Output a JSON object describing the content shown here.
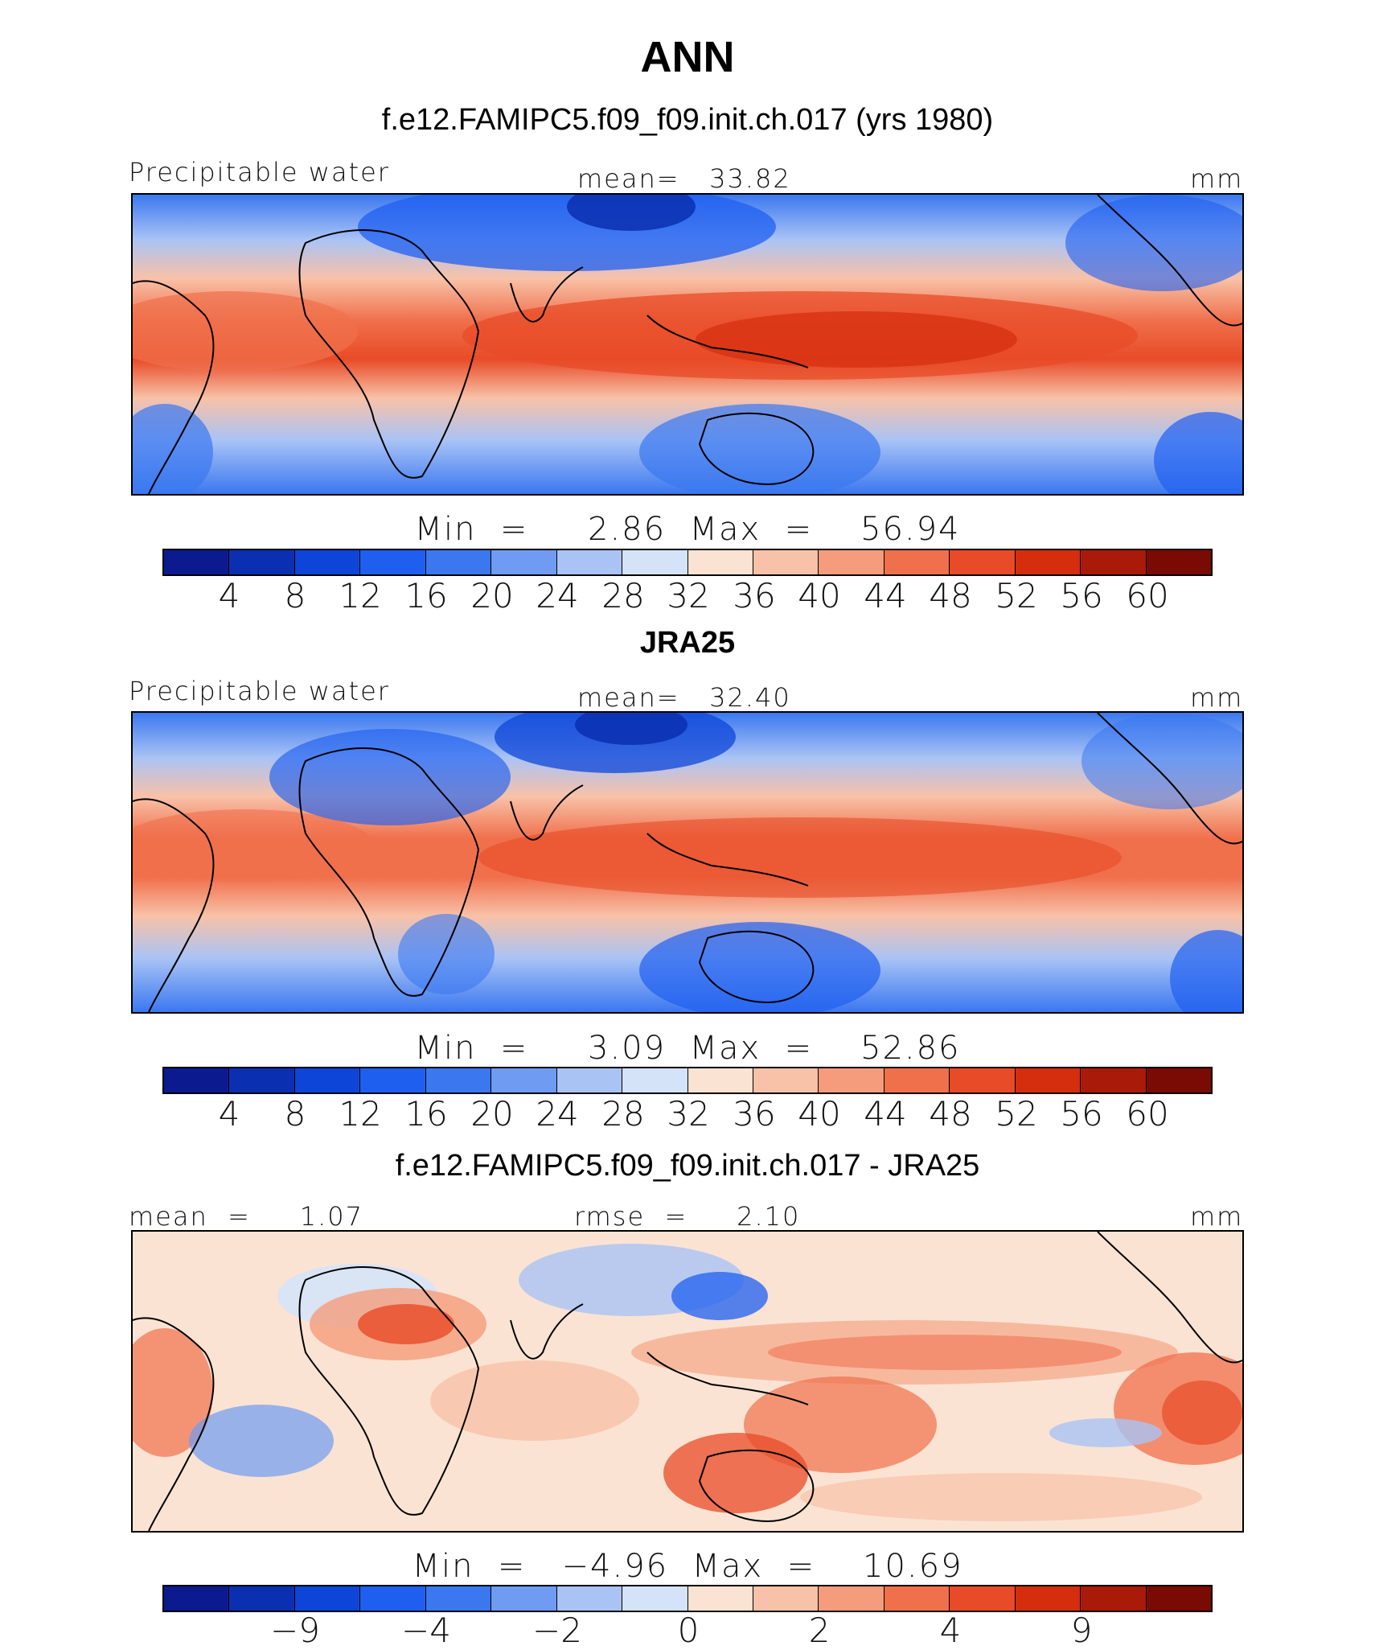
{
  "season": "ANN",
  "panels": [
    {
      "title": "f.e12.FAMIPC5.f09_f09.init.ch.017 (yrs 1980)",
      "title_bold": false,
      "left_label": "Precipitable water",
      "center_label": "mean=   33.82",
      "right_label": "mm",
      "minmax": "Min  =     2.86  Max  =    56.94",
      "colorbar_ticks": [
        "4",
        "8",
        "12",
        "16",
        "20",
        "24",
        "28",
        "32",
        "36",
        "40",
        "44",
        "48",
        "52",
        "56",
        "60"
      ]
    },
    {
      "title": "JRA25",
      "title_bold": true,
      "left_label": "Precipitable water",
      "center_label": "mean=   32.40",
      "right_label": "mm",
      "minmax": "Min  =     3.09  Max  =    52.86",
      "colorbar_ticks": [
        "4",
        "8",
        "12",
        "16",
        "20",
        "24",
        "28",
        "32",
        "36",
        "40",
        "44",
        "48",
        "52",
        "56",
        "60"
      ]
    },
    {
      "title": "f.e12.FAMIPC5.f09_f09.init.ch.017 - JRA25",
      "title_bold": false,
      "left_label": "mean  =     1.07",
      "center_label": "rmse  =     2.10",
      "right_label": "mm",
      "minmax": "Min  =   −4.96  Max  =    10.69",
      "colorbar_ticks": [
        "−9",
        "−4",
        "−2",
        "0",
        "2",
        "4",
        "9"
      ]
    }
  ],
  "colors": {
    "palette": [
      "#0b1a8f",
      "#0a2fb0",
      "#0d45d8",
      "#1f5ff0",
      "#3b78f0",
      "#6f9bf2",
      "#a9c3f5",
      "#d5e3f8",
      "#fbe3d3",
      "#f8c2a8",
      "#f59c7c",
      "#f0704c",
      "#e84b27",
      "#d42e0e",
      "#a91a08",
      "#7a0a04"
    ]
  },
  "chart_data": {
    "type": "heatmap",
    "title": "ANN",
    "variable": "Precipitable water",
    "units": "mm",
    "panels": [
      {
        "name": "f.e12.FAMIPC5.f09_f09.init.ch.017 (yrs 1980)",
        "mean": 33.82,
        "min": 2.86,
        "max": 56.94,
        "levels": [
          4,
          8,
          12,
          16,
          20,
          24,
          28,
          32,
          36,
          40,
          44,
          48,
          52,
          56,
          60
        ]
      },
      {
        "name": "JRA25",
        "mean": 32.4,
        "min": 3.09,
        "max": 52.86,
        "levels": [
          4,
          8,
          12,
          16,
          20,
          24,
          28,
          32,
          36,
          40,
          44,
          48,
          52,
          56,
          60
        ]
      },
      {
        "name": "f.e12.FAMIPC5.f09_f09.init.ch.017 - JRA25",
        "mean": 1.07,
        "rmse": 2.1,
        "min": -4.96,
        "max": 10.69,
        "levels": [
          -9,
          -4,
          -2,
          0,
          2,
          4,
          9
        ]
      }
    ]
  }
}
